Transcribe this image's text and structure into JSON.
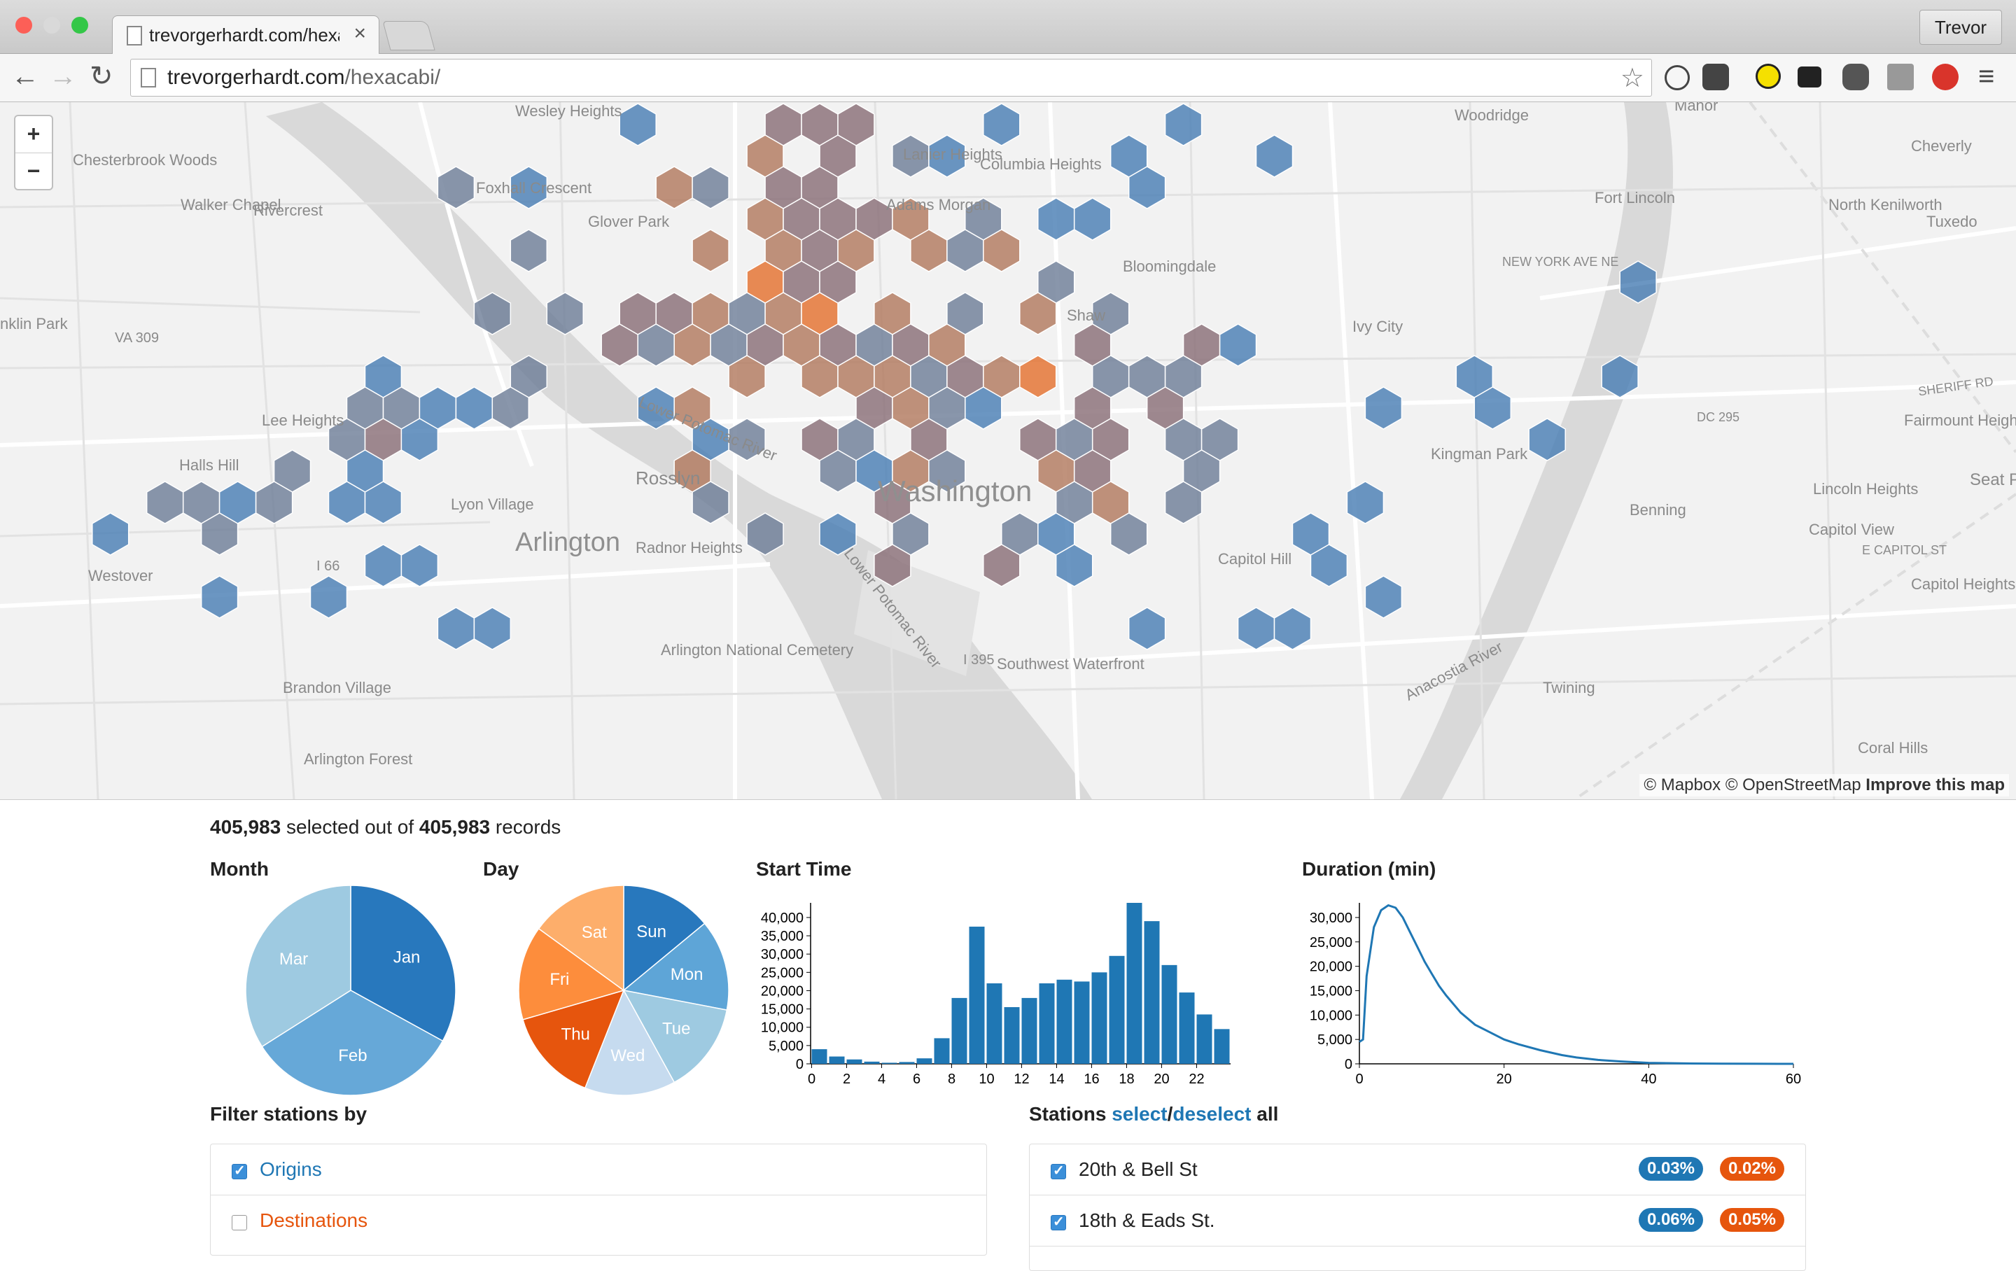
{
  "browser": {
    "tab_title": "trevorgerhardt.com/hexaca",
    "tab_close": "×",
    "user": "Trevor",
    "url_host": "trevorgerhardt.com",
    "url_path": "/hexacabi/",
    "back": "←",
    "forward": "→",
    "reload": "↻",
    "star": "☆",
    "menu": "≡"
  },
  "map": {
    "zoom_in": "+",
    "zoom_out": "−",
    "attribution_prefix": "© Mapbox © OpenStreetMap",
    "attribution_link": "Improve this map",
    "labels": {
      "wesley": "Wesley Heights",
      "woodridge": "Woodridge",
      "manor": "Manor",
      "cheverly": "Cheverly",
      "chesterbrook": "Chesterbrook Woods",
      "foxhall": "Foxhall Crescent",
      "walker": "Walker Chapel",
      "rivercrest": "Rivercrest",
      "glover": "Glover Park",
      "fortlincoln": "Fort Lincoln",
      "northkenilworth": "North Kenilworth",
      "tuxedo": "Tuxedo",
      "bloomingdale": "Bloomingdale",
      "shaw": "Shaw",
      "ivycity": "Ivy City",
      "leeheights": "Lee Heights",
      "fairmount": "Fairmount Heights",
      "hallshill": "Halls Hill",
      "kingman": "Kingman Park",
      "rosslyn": "Rosslyn",
      "washington": "Washington",
      "lyon": "Lyon Village",
      "arlington": "Arlington",
      "radnor": "Radnor Heights",
      "lincolnheights": "Lincoln Heights",
      "benning": "Benning",
      "capitolview": "Capitol View",
      "seat": "Seat P",
      "westover": "Westover",
      "capitolhill": "Capitol Hill",
      "capitolheights": "Capitol Heights",
      "arlcemetery": "Arlington National Cemetery",
      "brandon": "Brandon Village",
      "swwaterfront": "Southwest Waterfront",
      "twining": "Twining",
      "arlforest": "Arlington Forest",
      "coralhills": "Coral Hills",
      "columbia": "Columbia Heights",
      "adams": "Adams Morgan",
      "lanier": "Lanier Heights",
      "lowerpotomac": "Lower Potomac River",
      "anacostia": "Anacostia River",
      "nklin": "nklin Park",
      "va309": "VA 309",
      "i66": "I 66",
      "i395": "I 395",
      "newyorkave": "NEW YORK AVE NE",
      "capitolst": "E CAPITOL ST",
      "sheriff": "SHERIFF RD",
      "dc295": "DC 295"
    },
    "colors": {
      "blue": "#4a7fb5",
      "slate": "#6f7f99",
      "mauve": "#8a6f78",
      "brown": "#b27a5f",
      "orange": "#e4722f"
    }
  },
  "summary": {
    "selected": "405,983",
    "middle": " selected out of ",
    "total": "405,983",
    "suffix": " records"
  },
  "charts": {
    "month_title": "Month",
    "day_title": "Day",
    "start_title": "Start Time",
    "duration_title": "Duration (min)"
  },
  "chart_data": [
    {
      "type": "pie",
      "title": "Month",
      "categories": [
        "Jan",
        "Feb",
        "Mar"
      ],
      "values": [
        33,
        33,
        34
      ],
      "colors": [
        "#2878bd",
        "#66a8d8",
        "#9ecae1"
      ]
    },
    {
      "type": "pie",
      "title": "Day",
      "categories": [
        "Sun",
        "Mon",
        "Tue",
        "Wed",
        "Thu",
        "Fri",
        "Sat"
      ],
      "values": [
        14,
        14,
        14,
        14,
        14.5,
        14.5,
        15
      ],
      "colors": [
        "#2878bd",
        "#5ea5d7",
        "#9ecae1",
        "#c6dbef",
        "#e6550d",
        "#fd8d3c",
        "#fdae6b"
      ]
    },
    {
      "type": "bar",
      "title": "Start Time",
      "x": [
        0,
        1,
        2,
        3,
        4,
        5,
        6,
        7,
        8,
        9,
        10,
        11,
        12,
        13,
        14,
        15,
        16,
        17,
        18,
        19,
        20,
        21,
        22,
        23
      ],
      "values": [
        4000,
        2000,
        1200,
        600,
        300,
        500,
        1500,
        7000,
        18000,
        37500,
        22000,
        15500,
        18000,
        22000,
        23000,
        22500,
        25000,
        29500,
        44000,
        39000,
        27000,
        19500,
        13500,
        9500
      ],
      "xticks": [
        0,
        2,
        4,
        6,
        8,
        10,
        12,
        14,
        16,
        18,
        20,
        22
      ],
      "yticks": [
        0,
        5000,
        10000,
        15000,
        20000,
        25000,
        30000,
        35000,
        40000
      ],
      "ylim": [
        0,
        44000
      ],
      "color": "#1f77b4"
    },
    {
      "type": "line",
      "title": "Duration (min)",
      "x": [
        0,
        0.5,
        1,
        2,
        3,
        4,
        5,
        6,
        7,
        8,
        9,
        10,
        11,
        12,
        14,
        16,
        18,
        20,
        22,
        25,
        28,
        30,
        33,
        36,
        40,
        45,
        50,
        55,
        60
      ],
      "values": [
        4500,
        5000,
        18000,
        28000,
        31500,
        32500,
        32000,
        30000,
        27000,
        24000,
        21000,
        18500,
        16000,
        14000,
        10500,
        8000,
        6500,
        5000,
        4000,
        2800,
        1800,
        1300,
        800,
        500,
        200,
        80,
        30,
        10,
        0
      ],
      "xticks": [
        0,
        20,
        40,
        60
      ],
      "yticks": [
        0,
        5000,
        10000,
        15000,
        20000,
        25000,
        30000
      ],
      "xlim": [
        0,
        60
      ],
      "ylim": [
        0,
        33000
      ],
      "color": "#1f77b4"
    }
  ],
  "filters": {
    "title": "Filter stations by",
    "origins": "Origins",
    "destinations": "Destinations"
  },
  "stations": {
    "title_prefix": "Stations ",
    "select": "select",
    "slash": "/",
    "deselect": "deselect",
    "title_suffix": " all",
    "items": [
      {
        "name": "20th & Bell St",
        "origin_pct": "0.03%",
        "dest_pct": "0.02%"
      },
      {
        "name": "18th & Eads St.",
        "origin_pct": "0.06%",
        "dest_pct": "0.05%"
      }
    ]
  }
}
